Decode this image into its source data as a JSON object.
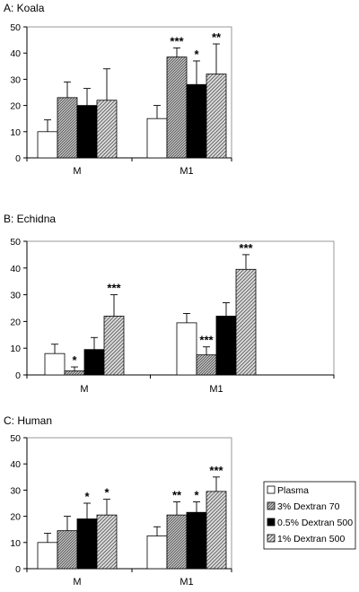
{
  "legend": {
    "entries": [
      "Plasma",
      "3% Dextran 70",
      "0.5% Dextran 500",
      "1% Dextran 500"
    ]
  },
  "chart_data": [
    {
      "type": "bar",
      "title": "A: Koala",
      "categories": [
        "M",
        "M1"
      ],
      "ylim": [
        0,
        50
      ],
      "yticks": [
        0,
        10,
        20,
        30,
        40,
        50
      ],
      "grid": false,
      "series": [
        {
          "name": "Plasma",
          "values": [
            10,
            15
          ],
          "errors": [
            4.5,
            5
          ],
          "significance": [
            "",
            ""
          ]
        },
        {
          "name": "3% Dextran 70",
          "values": [
            23,
            38.5
          ],
          "errors": [
            6,
            3.5
          ],
          "significance": [
            "",
            "***"
          ]
        },
        {
          "name": "0.5% Dextran 500",
          "values": [
            20,
            28
          ],
          "errors": [
            6.5,
            9
          ],
          "significance": [
            "",
            "*"
          ]
        },
        {
          "name": "1% Dextran 500",
          "values": [
            22,
            32
          ],
          "errors": [
            12,
            11.5
          ],
          "significance": [
            "",
            "**"
          ]
        }
      ]
    },
    {
      "type": "bar",
      "title": "B: Echidna",
      "categories": [
        "M",
        "M1"
      ],
      "ylim": [
        0,
        50
      ],
      "yticks": [
        0,
        10,
        20,
        30,
        40,
        50
      ],
      "grid": false,
      "series": [
        {
          "name": "Plasma",
          "values": [
            8,
            19.5
          ],
          "errors": [
            3.5,
            3.5
          ],
          "significance": [
            "",
            ""
          ]
        },
        {
          "name": "3% Dextran 70",
          "values": [
            1.5,
            7.5
          ],
          "errors": [
            1.5,
            3
          ],
          "significance": [
            "*",
            "***"
          ]
        },
        {
          "name": "0.5% Dextran 500",
          "values": [
            9.5,
            22
          ],
          "errors": [
            4.5,
            5
          ],
          "significance": [
            "",
            ""
          ]
        },
        {
          "name": "1% Dextran 500",
          "values": [
            22,
            39.5
          ],
          "errors": [
            8,
            5.5
          ],
          "significance": [
            "***",
            "***"
          ]
        }
      ]
    },
    {
      "type": "bar",
      "title": "C: Human",
      "categories": [
        "M",
        "M1"
      ],
      "ylim": [
        0,
        50
      ],
      "yticks": [
        0,
        10,
        20,
        30,
        40,
        50
      ],
      "grid": false,
      "legend_position": "right",
      "series": [
        {
          "name": "Plasma",
          "values": [
            10,
            12.5
          ],
          "errors": [
            3.5,
            3.5
          ],
          "significance": [
            "",
            ""
          ]
        },
        {
          "name": "3% Dextran 70",
          "values": [
            14.5,
            20.5
          ],
          "errors": [
            5.5,
            5
          ],
          "significance": [
            "",
            "**"
          ]
        },
        {
          "name": "0.5% Dextran 500",
          "values": [
            19,
            21.5
          ],
          "errors": [
            6,
            4
          ],
          "significance": [
            "*",
            "*"
          ]
        },
        {
          "name": "1% Dextran 500",
          "values": [
            20.5,
            29.5
          ],
          "errors": [
            6,
            5.5
          ],
          "significance": [
            "*",
            "***"
          ]
        }
      ]
    }
  ],
  "colors": {
    "plasma": "#ffffff",
    "dextran70_hatch": "#5a5a5a",
    "dextran500_05": "#000000",
    "dextran500_1_hatch": "#5a5a5a",
    "axis": "#000000",
    "frame": "#808080"
  }
}
